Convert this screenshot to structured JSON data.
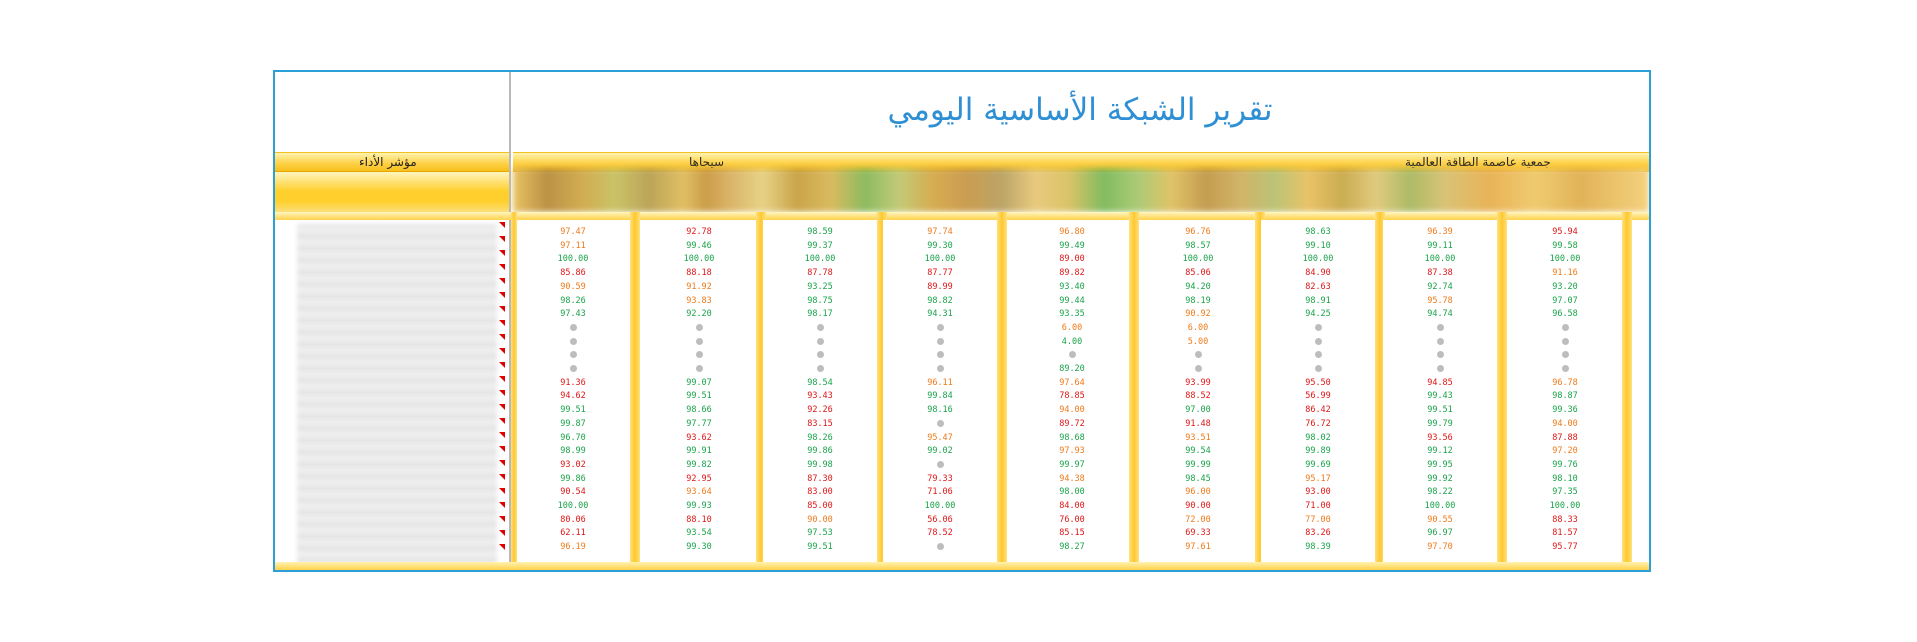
{
  "report": {
    "title": "تقرير الشبكة الأساسية اليومي",
    "kpi_header": "مؤشر الأداء",
    "region_left": "سيحاها",
    "region_right": "جمعية عاصمة الطاقة العالمية"
  },
  "columns": [
    [
      "o:97.47",
      "o:97.11",
      "g:100.00",
      "r:85.86",
      "o:90.59",
      "g:98.26",
      "g:97.43",
      "d",
      "d",
      "d",
      "d",
      "r:91.36",
      "r:94.62",
      "g:99.51",
      "g:99.87",
      "g:96.70",
      "g:98.99",
      "r:93.02",
      "g:99.86",
      "r:90.54",
      "g:100.00",
      "r:80.06",
      "r:62.11",
      "o:96.19"
    ],
    [
      "r:92.78",
      "g:99.46",
      "g:100.00",
      "r:88.18",
      "o:91.92",
      "o:93.83",
      "g:92.20",
      "d",
      "d",
      "d",
      "d",
      "g:99.07",
      "g:99.51",
      "g:98.66",
      "g:97.77",
      "r:93.62",
      "g:99.91",
      "g:99.82",
      "r:92.95",
      "o:93.64",
      "g:99.93",
      "r:88.10",
      "g:93.54",
      "g:99.30"
    ],
    [
      "g:98.59",
      "g:99.37",
      "g:100.00",
      "r:87.78",
      "g:93.25",
      "g:98.75",
      "g:98.17",
      "d",
      "d",
      "d",
      "d",
      "g:98.54",
      "r:93.43",
      "r:92.26",
      "r:83.15",
      "g:98.26",
      "g:99.86",
      "g:99.98",
      "r:87.30",
      "r:83.00",
      "r:85.00",
      "o:90.00",
      "g:97.53",
      "g:99.51"
    ],
    [
      "o:97.74",
      "g:99.30",
      "g:100.00",
      "r:87.77",
      "r:89.99",
      "g:98.82",
      "g:94.31",
      "d",
      "d",
      "d",
      "d",
      "o:96.11",
      "g:99.84",
      "g:98.16",
      "d",
      "o:95.47",
      "g:99.02",
      "d",
      "r:79.33",
      "r:71.06",
      "g:100.00",
      "r:56.06",
      "r:78.52",
      "d"
    ],
    [
      "o:96.80",
      "g:99.49",
      "r:89.00",
      "r:89.82",
      "g:93.40",
      "g:99.44",
      "g:93.35",
      "o:6.00",
      "g:4.00",
      "d",
      "g:89.20",
      "o:97.64",
      "r:78.85",
      "o:94.00",
      "r:89.72",
      "g:98.68",
      "o:97.93",
      "g:99.97",
      "o:94.38",
      "g:98.00",
      "r:84.00",
      "r:76.00",
      "r:85.15",
      "g:98.27"
    ],
    [
      "o:96.76",
      "g:98.57",
      "g:100.00",
      "r:85.06",
      "g:94.20",
      "g:98.19",
      "o:90.92",
      "o:6.00",
      "o:5.00",
      "d",
      "d",
      "r:93.99",
      "r:88.52",
      "g:97.00",
      "r:91.48",
      "o:93.51",
      "g:99.54",
      "g:99.99",
      "g:98.45",
      "o:96.00",
      "r:90.00",
      "o:72.00",
      "r:69.33",
      "o:97.61"
    ],
    [
      "g:98.63",
      "g:99.10",
      "g:100.00",
      "r:84.90",
      "r:82.63",
      "g:98.91",
      "g:94.25",
      "d",
      "d",
      "d",
      "d",
      "r:95.50",
      "r:56.99",
      "r:86.42",
      "r:76.72",
      "g:98.02",
      "g:99.89",
      "g:99.69",
      "o:95.17",
      "r:93.00",
      "r:71.00",
      "o:77.00",
      "r:83.26",
      "g:98.39"
    ],
    [
      "o:96.39",
      "g:99.11",
      "g:100.00",
      "r:87.38",
      "g:92.74",
      "o:95.78",
      "g:94.74",
      "d",
      "d",
      "d",
      "d",
      "r:94.85",
      "g:99.43",
      "g:99.51",
      "g:99.79",
      "r:93.56",
      "g:99.12",
      "g:99.95",
      "g:99.92",
      "g:98.22",
      "g:100.00",
      "o:90.55",
      "g:96.97",
      "o:97.70"
    ],
    [
      "r:95.94",
      "g:99.58",
      "g:100.00",
      "o:91.16",
      "g:93.20",
      "g:97.07",
      "g:96.58",
      "d",
      "d",
      "d",
      "d",
      "o:96.78",
      "g:98.87",
      "g:99.36",
      "o:94.00",
      "r:87.88",
      "o:97.20",
      "g:99.76",
      "g:98.10",
      "g:97.35",
      "g:100.00",
      "r:88.33",
      "r:81.57",
      "r:95.77"
    ]
  ],
  "colors": {
    "frame": "#2a9fd8",
    "title": "#2e8fd4",
    "gold": "#ffd24a",
    "good": "#1aa34a",
    "bad": "#e01515",
    "warn": "#ef7a1a"
  }
}
